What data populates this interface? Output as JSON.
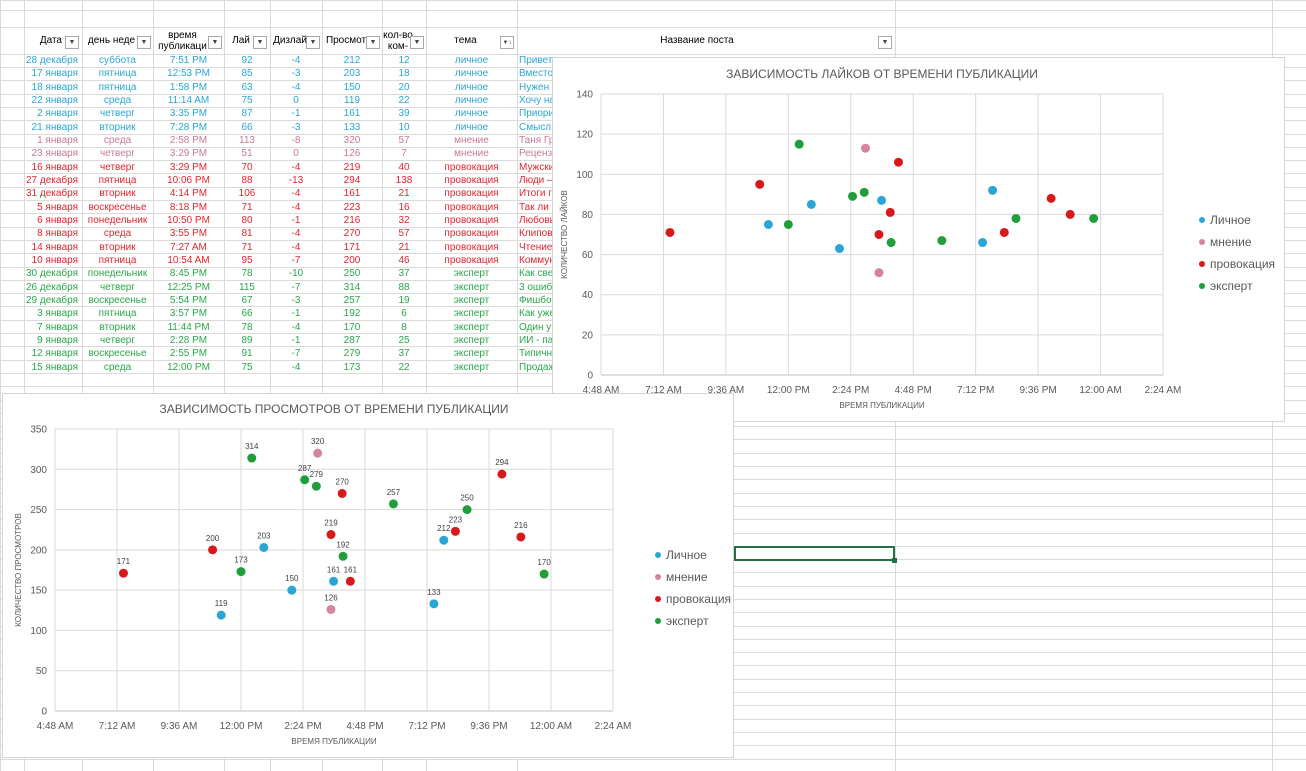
{
  "table": {
    "headers": [
      {
        "label": "Дата"
      },
      {
        "label": "день неде"
      },
      {
        "label": "время\nпубликаци"
      },
      {
        "label": "Лай"
      },
      {
        "label": "Дизлай"
      },
      {
        "label": "Просмот"
      },
      {
        "label": "кол-во\nком-"
      },
      {
        "label": "тема"
      },
      {
        "label": "Название поста"
      }
    ],
    "category_colors": {
      "личное": "#2aa6d6",
      "мнение": "#c97a92",
      "провокация": "#e0262d",
      "эксперт": "#2aa84a"
    },
    "rows": [
      [
        "28 декабря",
        "суббота",
        "7:51 PM",
        "92",
        "-4",
        "212",
        "12",
        "личное",
        "Привет"
      ],
      [
        "17 января",
        "пятница",
        "12:53 PM",
        "85",
        "-3",
        "203",
        "18",
        "личное",
        "Вместо"
      ],
      [
        "18 января",
        "пятница",
        "1:58 PM",
        "63",
        "-4",
        "150",
        "20",
        "личное",
        "Нужен"
      ],
      [
        "22 января",
        "среда",
        "11:14 AM",
        "75",
        "0",
        "119",
        "22",
        "личное",
        "Хочу на"
      ],
      [
        "2 января",
        "четверг",
        "3:35 PM",
        "87",
        "-1",
        "161",
        "39",
        "личное",
        "Приори"
      ],
      [
        "21 января",
        "вторник",
        "7:28 PM",
        "66",
        "-3",
        "133",
        "10",
        "личное",
        "Смысл"
      ],
      [
        "1 января",
        "среда",
        "2:58 PM",
        "113",
        "-8",
        "320",
        "57",
        "мнение",
        "Таня Гр"
      ],
      [
        "23 января",
        "четверг",
        "3:29 PM",
        "51",
        "0",
        "126",
        "7",
        "мнение",
        "Реценз"
      ],
      [
        "16 января",
        "четверг",
        "3:29 PM",
        "70",
        "-4",
        "219",
        "40",
        "провокация",
        "Мужски"
      ],
      [
        "27 декабря",
        "пятница",
        "10:06 PM",
        "88",
        "-13",
        "294",
        "138",
        "провокация",
        "Люди –"
      ],
      [
        "31 декабря",
        "вторник",
        "4:14 PM",
        "106",
        "-4",
        "161",
        "21",
        "провокация",
        "Итоги г"
      ],
      [
        "5 января",
        "воскресенье",
        "8:18 PM",
        "71",
        "-4",
        "223",
        "16",
        "провокация",
        "Так ли"
      ],
      [
        "6 января",
        "понедельник",
        "10:50 PM",
        "80",
        "-1",
        "216",
        "32",
        "провокация",
        "Любовь"
      ],
      [
        "8 января",
        "среда",
        "3:55 PM",
        "81",
        "-4",
        "270",
        "57",
        "провокация",
        "Клипов"
      ],
      [
        "14 января",
        "вторник",
        "7:27 AM",
        "71",
        "-4",
        "171",
        "21",
        "провокация",
        "Чтение"
      ],
      [
        "10 января",
        "пятница",
        "10:54 AM",
        "95",
        "-7",
        "200",
        "46",
        "провокация",
        "Коммун"
      ],
      [
        "30 декабря",
        "понедельник",
        "8:45 PM",
        "78",
        "-10",
        "250",
        "37",
        "эксперт",
        "Как све"
      ],
      [
        "26 декабря",
        "четверг",
        "12:25 PM",
        "115",
        "-7",
        "314",
        "88",
        "эксперт",
        "3 ошиб"
      ],
      [
        "29 декабря",
        "воскресенье",
        "5:54 PM",
        "67",
        "-3",
        "257",
        "19",
        "эксперт",
        "Фишбо"
      ],
      [
        "3 января",
        "пятница",
        "3:57 PM",
        "66",
        "-1",
        "192",
        "6",
        "эксперт",
        "Как уже"
      ],
      [
        "7 января",
        "вторник",
        "11:44 PM",
        "78",
        "-4",
        "170",
        "8",
        "эксперт",
        "Один у"
      ],
      [
        "9 января",
        "четверг",
        "2:28 PM",
        "89",
        "-1",
        "287",
        "25",
        "эксперт",
        "ИИ - па"
      ],
      [
        "12 января",
        "воскресенье",
        "2:55 PM",
        "91",
        "-7",
        "279",
        "37",
        "эксперт",
        "Типичн"
      ],
      [
        "15 января",
        "среда",
        "12:00 PM",
        "75",
        "-4",
        "173",
        "22",
        "эксперт",
        "Продаж"
      ]
    ]
  },
  "chart_data": [
    {
      "type": "scatter",
      "title": "ЗАВИСИМОСТЬ ЛАЙКОВ ОТ ВРЕМЕНИ ПУБЛИКАЦИИ",
      "xlabel": "ВРЕМЯ ПУБЛИКАЦИИ",
      "ylabel": "КОЛИЧЕСТВО ЛАЙКОВ",
      "x_ticks": [
        "4:48 AM",
        "7:12 AM",
        "9:36 AM",
        "12:00 PM",
        "2:24 PM",
        "4:48 PM",
        "7:12 PM",
        "9:36 PM",
        "12:00 AM",
        "2:24 AM"
      ],
      "xlim": [
        0.2,
        1.1
      ],
      "ylim": [
        0,
        140
      ],
      "y_ticks": [
        "0",
        "20",
        "40",
        "60",
        "80",
        "100",
        "120",
        "140"
      ],
      "grid": true,
      "legend_position": "right",
      "data_labels": false,
      "series": [
        {
          "name": "Личное",
          "color": "#2aa6d6",
          "points": [
            [
              "7:51 PM",
              92
            ],
            [
              "12:53 PM",
              85
            ],
            [
              "1:58 PM",
              63
            ],
            [
              "11:14 AM",
              75
            ],
            [
              "3:35 PM",
              87
            ],
            [
              "7:28 PM",
              66
            ]
          ]
        },
        {
          "name": "мнение",
          "color": "#d4849c",
          "points": [
            [
              "2:58 PM",
              113
            ],
            [
              "3:29 PM",
              51
            ]
          ]
        },
        {
          "name": "провокация",
          "color": "#d7191c",
          "points": [
            [
              "3:29 PM",
              70
            ],
            [
              "10:06 PM",
              88
            ],
            [
              "4:14 PM",
              106
            ],
            [
              "8:18 PM",
              71
            ],
            [
              "10:50 PM",
              80
            ],
            [
              "3:55 PM",
              81
            ],
            [
              "7:27 AM",
              71
            ],
            [
              "10:54 AM",
              95
            ]
          ]
        },
        {
          "name": "эксперт",
          "color": "#1f9e3a",
          "points": [
            [
              "8:45 PM",
              78
            ],
            [
              "12:25 PM",
              115
            ],
            [
              "5:54 PM",
              67
            ],
            [
              "3:57 PM",
              66
            ],
            [
              "11:44 PM",
              78
            ],
            [
              "2:28 PM",
              89
            ],
            [
              "2:55 PM",
              91
            ],
            [
              "12:00 PM",
              75
            ]
          ]
        }
      ]
    },
    {
      "type": "scatter",
      "title": "ЗАВИСИМОСТЬ ПРОСМОТРОВ ОТ ВРЕМЕНИ ПУБЛИКАЦИИ",
      "xlabel": "ВРЕМЯ ПУБЛИКАЦИИ",
      "ylabel": "КОЛИЧЕСТВО ПРОСМОТРОВ",
      "x_ticks": [
        "4:48 AM",
        "7:12 AM",
        "9:36 AM",
        "12:00 PM",
        "2:24 PM",
        "4:48 PM",
        "7:12 PM",
        "9:36 PM",
        "12:00 AM",
        "2:24 AM"
      ],
      "xlim": [
        0.2,
        1.1
      ],
      "ylim": [
        0,
        350
      ],
      "y_ticks": [
        "0",
        "50",
        "100",
        "150",
        "200",
        "250",
        "300",
        "350"
      ],
      "grid": true,
      "legend_position": "right",
      "data_labels": true,
      "series": [
        {
          "name": "Личное",
          "color": "#2aa6d6",
          "points": [
            [
              "7:51 PM",
              212
            ],
            [
              "12:53 PM",
              203
            ],
            [
              "1:58 PM",
              150
            ],
            [
              "11:14 AM",
              119
            ],
            [
              "3:35 PM",
              161
            ],
            [
              "7:28 PM",
              133
            ]
          ]
        },
        {
          "name": "мнение",
          "color": "#d4849c",
          "points": [
            [
              "2:58 PM",
              320
            ],
            [
              "3:29 PM",
              126
            ]
          ]
        },
        {
          "name": "провокация",
          "color": "#d7191c",
          "points": [
            [
              "3:29 PM",
              219
            ],
            [
              "10:06 PM",
              294
            ],
            [
              "4:14 PM",
              161
            ],
            [
              "8:18 PM",
              223
            ],
            [
              "10:50 PM",
              216
            ],
            [
              "3:55 PM",
              270
            ],
            [
              "7:27 AM",
              171
            ],
            [
              "10:54 AM",
              200
            ]
          ]
        },
        {
          "name": "эксперт",
          "color": "#1f9e3a",
          "points": [
            [
              "8:45 PM",
              250
            ],
            [
              "12:25 PM",
              314
            ],
            [
              "5:54 PM",
              257
            ],
            [
              "3:57 PM",
              192
            ],
            [
              "11:44 PM",
              170
            ],
            [
              "2:28 PM",
              287
            ],
            [
              "2:55 PM",
              279
            ],
            [
              "12:00 PM",
              173
            ]
          ]
        }
      ]
    }
  ]
}
